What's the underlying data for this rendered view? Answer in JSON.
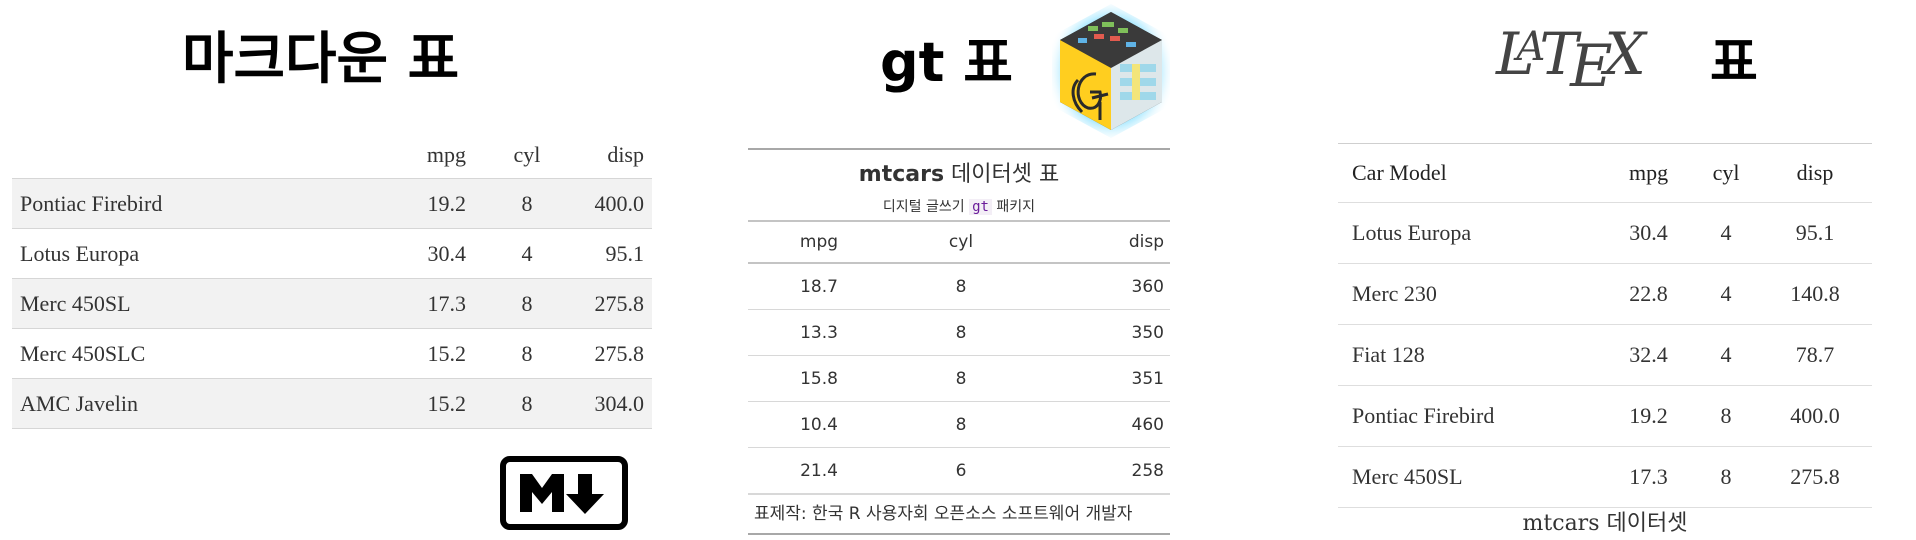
{
  "markdown": {
    "title": "마크다운 표",
    "headers": [
      "",
      "mpg",
      "cyl",
      "disp"
    ],
    "rows": [
      [
        "Pontiac Firebird",
        "19.2",
        "8",
        "400.0"
      ],
      [
        "Lotus Europa",
        "30.4",
        "4",
        "95.1"
      ],
      [
        "Merc 450SL",
        "17.3",
        "8",
        "275.8"
      ],
      [
        "Merc 450SLC",
        "15.2",
        "8",
        "275.8"
      ],
      [
        "AMC Javelin",
        "15.2",
        "8",
        "304.0"
      ]
    ],
    "logo": "markdown-logo"
  },
  "gt": {
    "title": "gt 표",
    "table_title_bold": "mtcars",
    "table_title_rest": " 데이터셋 표",
    "subtitle_pre": "디지털 글쓰기 ",
    "subtitle_code": "gt",
    "subtitle_post": " 패키지",
    "headers": [
      "mpg",
      "cyl",
      "disp"
    ],
    "rows": [
      [
        "18.7",
        "8",
        "360"
      ],
      [
        "13.3",
        "8",
        "350"
      ],
      [
        "15.8",
        "8",
        "351"
      ],
      [
        "10.4",
        "8",
        "460"
      ],
      [
        "21.4",
        "6",
        "258"
      ]
    ],
    "source_note": "표제작: 한국 R 사용자회 오픈소스 소프트웨어 개발자",
    "logo": "gt-hex-logo"
  },
  "latex": {
    "logo_text": "LaTeX",
    "title_suffix": "표",
    "headers": [
      "Car Model",
      "mpg",
      "cyl",
      "disp"
    ],
    "rows": [
      [
        "Lotus Europa",
        "30.4",
        "4",
        "95.1"
      ],
      [
        "Merc 230",
        "22.8",
        "4",
        "140.8"
      ],
      [
        "Fiat 128",
        "32.4",
        "4",
        "78.7"
      ],
      [
        "Pontiac Firebird",
        "19.2",
        "8",
        "400.0"
      ],
      [
        "Merc 450SL",
        "17.3",
        "8",
        "275.8"
      ]
    ],
    "caption": "mtcars 데이터셋"
  }
}
